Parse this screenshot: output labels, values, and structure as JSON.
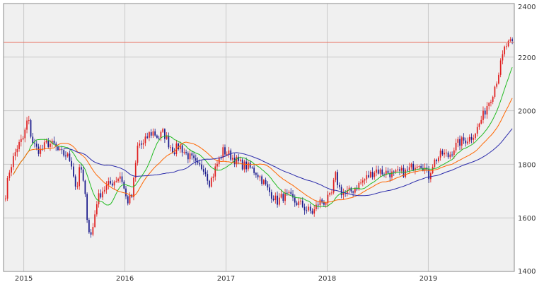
{
  "colors": {
    "plot_bg": "#f0f0f0",
    "grid": "#c9c9c9",
    "frame": "#8a8a8a",
    "up": "#e02020",
    "down": "#1a1a8c",
    "resistance": "#e87060",
    "ma_short": "#22bb22",
    "ma_mid": "#ff6600",
    "ma_long": "#2a2aaa"
  },
  "chart_data": {
    "type": "candlestick",
    "x_axis": {
      "ticks": [
        "2015",
        "2016",
        "2017",
        "2018",
        "2019"
      ],
      "range": [
        2014.8,
        2019.85
      ]
    },
    "y_axis": {
      "ticks": [
        "1400",
        "1600",
        "1800",
        "2000",
        "2200",
        "2400"
      ],
      "range": [
        1400,
        2400
      ],
      "position": "right"
    },
    "grid": true,
    "horizontal_line": {
      "value": 2255
    },
    "price_anchors": [
      [
        2014.82,
        1690
      ],
      [
        2014.86,
        1780
      ],
      [
        2014.93,
        1860
      ],
      [
        2015.0,
        1900
      ],
      [
        2015.04,
        1975
      ],
      [
        2015.08,
        1890
      ],
      [
        2015.12,
        1860
      ],
      [
        2015.17,
        1850
      ],
      [
        2015.23,
        1880
      ],
      [
        2015.3,
        1870
      ],
      [
        2015.36,
        1840
      ],
      [
        2015.42,
        1835
      ],
      [
        2015.47,
        1810
      ],
      [
        2015.52,
        1700
      ],
      [
        2015.56,
        1800
      ],
      [
        2015.6,
        1700
      ],
      [
        2015.64,
        1560
      ],
      [
        2015.67,
        1530
      ],
      [
        2015.72,
        1660
      ],
      [
        2015.77,
        1700
      ],
      [
        2015.83,
        1720
      ],
      [
        2015.9,
        1740
      ],
      [
        2015.96,
        1760
      ],
      [
        2016.02,
        1660
      ],
      [
        2016.07,
        1680
      ],
      [
        2016.13,
        1880
      ],
      [
        2016.18,
        1870
      ],
      [
        2016.23,
        1910
      ],
      [
        2016.28,
        1920
      ],
      [
        2016.33,
        1900
      ],
      [
        2016.38,
        1920
      ],
      [
        2016.43,
        1880
      ],
      [
        2016.48,
        1850
      ],
      [
        2016.54,
        1870
      ],
      [
        2016.6,
        1840
      ],
      [
        2016.66,
        1820
      ],
      [
        2016.72,
        1790
      ],
      [
        2016.78,
        1790
      ],
      [
        2016.84,
        1730
      ],
      [
        2016.91,
        1800
      ],
      [
        2016.97,
        1850
      ],
      [
        2017.02,
        1840
      ],
      [
        2017.08,
        1820
      ],
      [
        2017.15,
        1800
      ],
      [
        2017.22,
        1790
      ],
      [
        2017.3,
        1770
      ],
      [
        2017.36,
        1740
      ],
      [
        2017.42,
        1700
      ],
      [
        2017.47,
        1680
      ],
      [
        2017.5,
        1660
      ],
      [
        2017.56,
        1680
      ],
      [
        2017.62,
        1680
      ],
      [
        2017.68,
        1660
      ],
      [
        2017.74,
        1650
      ],
      [
        2017.8,
        1630
      ],
      [
        2017.86,
        1620
      ],
      [
        2017.92,
        1660
      ],
      [
        2017.98,
        1660
      ],
      [
        2018.04,
        1680
      ],
      [
        2018.08,
        1760
      ],
      [
        2018.13,
        1700
      ],
      [
        2018.18,
        1690
      ],
      [
        2018.24,
        1700
      ],
      [
        2018.3,
        1720
      ],
      [
        2018.36,
        1740
      ],
      [
        2018.42,
        1760
      ],
      [
        2018.48,
        1780
      ],
      [
        2018.54,
        1770
      ],
      [
        2018.6,
        1770
      ],
      [
        2018.66,
        1760
      ],
      [
        2018.72,
        1770
      ],
      [
        2018.78,
        1770
      ],
      [
        2018.84,
        1790
      ],
      [
        2018.9,
        1810
      ],
      [
        2018.96,
        1790
      ],
      [
        2019.0,
        1750
      ],
      [
        2019.04,
        1800
      ],
      [
        2019.08,
        1820
      ],
      [
        2019.14,
        1840
      ],
      [
        2019.2,
        1830
      ],
      [
        2019.25,
        1860
      ],
      [
        2019.3,
        1880
      ],
      [
        2019.36,
        1890
      ],
      [
        2019.42,
        1900
      ],
      [
        2019.48,
        1930
      ],
      [
        2019.54,
        1980
      ],
      [
        2019.58,
        2020
      ],
      [
        2019.63,
        2060
      ],
      [
        2019.68,
        2120
      ],
      [
        2019.72,
        2180
      ],
      [
        2019.76,
        2240
      ],
      [
        2019.8,
        2250
      ],
      [
        2019.83,
        2250
      ]
    ]
  }
}
